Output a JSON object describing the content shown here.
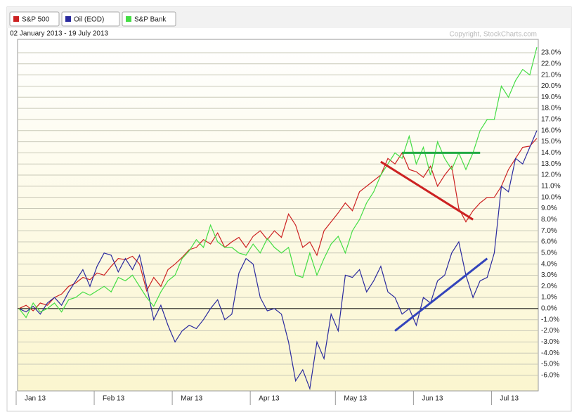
{
  "chart_data": {
    "type": "line",
    "date_range": "02 January 2013 - 19 July 2013",
    "copyright": "Copyright, StockCharts.com",
    "categories": [
      "Jan 13",
      null,
      null,
      null,
      null,
      null,
      null,
      null,
      null,
      null,
      null,
      "Feb 13",
      null,
      null,
      null,
      null,
      null,
      null,
      null,
      null,
      null,
      null,
      "Mar 13",
      null,
      null,
      null,
      null,
      null,
      null,
      null,
      null,
      null,
      null,
      "Apr 13",
      null,
      null,
      null,
      null,
      null,
      null,
      null,
      null,
      null,
      null,
      null,
      "May 13",
      null,
      null,
      null,
      null,
      null,
      null,
      null,
      null,
      null,
      null,
      "Jun 13",
      null,
      null,
      null,
      null,
      null,
      null,
      null,
      null,
      null,
      null,
      "Jul 13",
      null,
      null,
      null,
      null,
      null,
      null
    ],
    "series": [
      {
        "name": "S&P 500",
        "color": "#cc2222",
        "values": [
          0,
          0.3,
          -0.2,
          0.5,
          0.3,
          1.0,
          1.3,
          2.0,
          2.3,
          2.8,
          2.6,
          3.2,
          3.0,
          3.8,
          4.5,
          4.4,
          4.7,
          4.0,
          1.6,
          2.8,
          2.0,
          3.5,
          4.0,
          4.6,
          5.3,
          5.5,
          6.2,
          5.8,
          6.8,
          5.5,
          6.0,
          6.4,
          5.5,
          6.5,
          7.0,
          6.2,
          7.0,
          6.4,
          8.5,
          7.5,
          5.5,
          6.0,
          4.8,
          7.0,
          7.8,
          8.6,
          9.5,
          8.8,
          10.5,
          11.0,
          11.5,
          12.0,
          13.5,
          13.0,
          14.0,
          12.5,
          12.3,
          11.8,
          12.8,
          11.0,
          12.0,
          12.8,
          9.0,
          7.8,
          8.8,
          9.5,
          10.0,
          10.0,
          11.0,
          12.5,
          13.5,
          14.5,
          14.6,
          15.3
        ]
      },
      {
        "name": "Oil (EOD)",
        "color": "#2a2a9e",
        "values": [
          0,
          -0.3,
          0.2,
          -0.5,
          0.5,
          1.0,
          0.3,
          1.5,
          2.5,
          3.5,
          2.0,
          3.8,
          5.0,
          4.8,
          3.3,
          4.5,
          3.5,
          4.8,
          2.0,
          -1.0,
          0.3,
          -1.5,
          -3.0,
          -2.0,
          -1.5,
          -1.8,
          -1.0,
          0.0,
          0.8,
          -1.0,
          -0.5,
          3.2,
          4.5,
          4.0,
          1.0,
          -0.2,
          0.0,
          -0.5,
          -3.0,
          -6.5,
          -5.5,
          -7.2,
          -3.0,
          -4.5,
          -0.5,
          -2.0,
          3.0,
          2.8,
          3.5,
          1.5,
          2.5,
          3.8,
          1.5,
          1.0,
          -0.5,
          0.0,
          -1.5,
          1.0,
          0.5,
          2.5,
          3.0,
          5.0,
          6.0,
          3.0,
          1.0,
          2.5,
          2.8,
          5.0,
          11.0,
          10.5,
          13.5,
          13.0,
          14.5,
          16.0
        ]
      },
      {
        "name": "S&P Bank",
        "color": "#44dd44",
        "values": [
          0,
          -0.8,
          0.5,
          -0.3,
          0.0,
          0.5,
          -0.3,
          0.8,
          1.0,
          1.5,
          1.2,
          1.6,
          2.0,
          1.5,
          2.8,
          2.5,
          3.0,
          2.0,
          1.0,
          0.2,
          1.5,
          2.5,
          3.0,
          4.5,
          5.2,
          6.2,
          5.5,
          7.5,
          6.0,
          5.5,
          5.5,
          5.0,
          4.8,
          5.8,
          5.0,
          6.3,
          5.5,
          5.0,
          5.5,
          3.0,
          2.8,
          5.0,
          3.0,
          4.5,
          5.8,
          6.5,
          5.0,
          7.0,
          8.0,
          9.5,
          10.5,
          12.0,
          13.0,
          14.0,
          13.5,
          15.5,
          13.0,
          14.5,
          12.0,
          15.0,
          13.5,
          12.5,
          14.0,
          12.5,
          14.0,
          16.0,
          17.0,
          17.0,
          20.0,
          19.0,
          20.5,
          21.5,
          21.0,
          23.5
        ]
      }
    ],
    "trend_lines": [
      {
        "color": "#cc2222",
        "x": [
          51,
          64
        ],
        "values": [
          13.2,
          8.0
        ]
      },
      {
        "color": "#22aa44",
        "x": [
          54,
          65
        ],
        "values": [
          14.0,
          14.0
        ]
      },
      {
        "color": "#3344bb",
        "x": [
          53,
          66
        ],
        "values": [
          -2.0,
          4.5
        ]
      }
    ],
    "ylim": [
      -7.4,
      24.2
    ],
    "yticks": [
      {
        "value": -6,
        "label": "-6.0%"
      },
      {
        "value": -5,
        "label": "-5.0%"
      },
      {
        "value": -4,
        "label": "-4.0%"
      },
      {
        "value": -3,
        "label": "-3.0%"
      },
      {
        "value": -2,
        "label": "-2.0%"
      },
      {
        "value": -1,
        "label": "-1.0%"
      },
      {
        "value": 0,
        "label": "0.0%"
      },
      {
        "value": 1,
        "label": "1.0%"
      },
      {
        "value": 2,
        "label": "2.0%"
      },
      {
        "value": 3,
        "label": "3.0%"
      },
      {
        "value": 4,
        "label": "4.0%"
      },
      {
        "value": 5,
        "label": "5.0%"
      },
      {
        "value": 6,
        "label": "6.0%"
      },
      {
        "value": 7,
        "label": "7.0%"
      },
      {
        "value": 8,
        "label": "8.0%"
      },
      {
        "value": 9,
        "label": "9.0%"
      },
      {
        "value": 10,
        "label": "10.0%"
      },
      {
        "value": 11,
        "label": "11.0%"
      },
      {
        "value": 12,
        "label": "12.0%"
      },
      {
        "value": 13,
        "label": "13.0%"
      },
      {
        "value": 14,
        "label": "14.0%"
      },
      {
        "value": 15,
        "label": "15.0%"
      },
      {
        "value": 16,
        "label": "16.0%"
      },
      {
        "value": 17,
        "label": "17.0%"
      },
      {
        "value": 18,
        "label": "18.0%"
      },
      {
        "value": 19,
        "label": "19.0%"
      },
      {
        "value": 20,
        "label": "20.0%"
      },
      {
        "value": 21,
        "label": "21.0%"
      },
      {
        "value": 22,
        "label": "22.0%"
      },
      {
        "value": 23,
        "label": "23.0%"
      }
    ],
    "grid": true
  }
}
